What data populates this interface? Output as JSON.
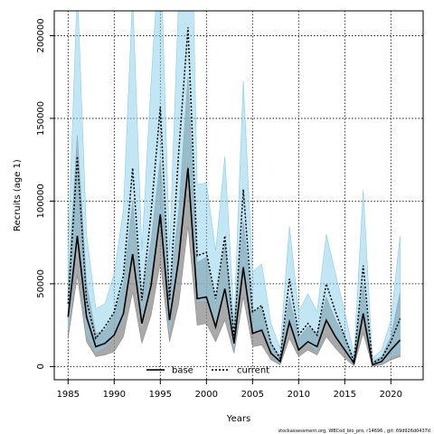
{
  "chart_data": {
    "type": "line",
    "title": "",
    "xlabel": "Years",
    "ylabel": "Recruits (age 1)",
    "xlim": [
      1983.5,
      2023.5
    ],
    "ylim": [
      -8000,
      215000
    ],
    "x_ticks": [
      1985,
      1990,
      1995,
      2000,
      2005,
      2010,
      2015,
      2020
    ],
    "y_ticks": [
      0,
      50000,
      100000,
      150000,
      200000
    ],
    "grid": true,
    "legend_position": "bottom-center",
    "x": [
      1985,
      1986,
      1987,
      1988,
      1989,
      1990,
      1991,
      1992,
      1993,
      1994,
      1995,
      1996,
      1997,
      1998,
      1999,
      2000,
      2001,
      2002,
      2003,
      2004,
      2005,
      2006,
      2007,
      2008,
      2009,
      2010,
      2011,
      2012,
      2013,
      2014,
      2015,
      2016,
      2017,
      2018,
      2019,
      2020,
      2021
    ],
    "series": [
      {
        "name": "base",
        "color": "#000000",
        "band_color": "#8c8c8c",
        "line_style": "solid",
        "values": [
          30000,
          79000,
          30000,
          12000,
          14000,
          19000,
          32000,
          68000,
          26000,
          49000,
          92000,
          28000,
          65000,
          120000,
          41000,
          42000,
          24000,
          47000,
          14000,
          60000,
          20000,
          22000,
          8000,
          3000,
          27000,
          10000,
          15000,
          12000,
          28000,
          18000,
          10000,
          2000,
          32000,
          1000,
          3000,
          10000,
          16000
        ],
        "lower": [
          17000,
          55000,
          15000,
          6000,
          7000,
          9000,
          18000,
          45000,
          14000,
          31000,
          63000,
          15000,
          38000,
          85000,
          25000,
          26000,
          15000,
          28000,
          8000,
          42000,
          12000,
          13000,
          4000,
          1000,
          17000,
          6000,
          10000,
          7000,
          18000,
          11000,
          5000,
          500,
          20000,
          200,
          1000,
          4000,
          6000
        ],
        "upper": [
          48000,
          140000,
          50000,
          20000,
          22000,
          32000,
          50000,
          100000,
          42000,
          76000,
          125000,
          45000,
          94000,
          175000,
          63000,
          66000,
          38000,
          74000,
          23000,
          88000,
          33000,
          36000,
          14000,
          6000,
          42000,
          17000,
          24000,
          20000,
          42000,
          28000,
          18000,
          5000,
          50000,
          3000,
          6000,
          18000,
          45000
        ]
      },
      {
        "name": "current",
        "color": "#000000",
        "band_color": "#87ceeb",
        "line_style": "dotted",
        "values": [
          38000,
          127000,
          40000,
          17000,
          24000,
          33000,
          55000,
          120000,
          40000,
          93000,
          157000,
          40000,
          130000,
          205000,
          67000,
          69000,
          41000,
          79000,
          17000,
          107000,
          33000,
          37000,
          14000,
          5000,
          53000,
          19000,
          26000,
          19000,
          50000,
          33000,
          18000,
          3000,
          61000,
          2000,
          5000,
          15000,
          29000
        ],
        "lower": [
          22000,
          80000,
          20000,
          9000,
          12000,
          18000,
          30000,
          70000,
          24000,
          58000,
          95000,
          20000,
          80000,
          130000,
          40000,
          40000,
          24000,
          45000,
          10000,
          65000,
          20000,
          22000,
          7000,
          2000,
          30000,
          10000,
          14000,
          10000,
          28000,
          19000,
          9000,
          1000,
          35000,
          800,
          2000,
          6000,
          8000
        ],
        "upper": [
          70000,
          230000,
          80000,
          35000,
          38000,
          56000,
          95000,
          225000,
          70000,
          172000,
          260000,
          70000,
          225000,
          380000,
          110000,
          111000,
          70000,
          127000,
          29000,
          173000,
          57000,
          62000,
          26000,
          11000,
          85000,
          33000,
          44000,
          33000,
          80000,
          56000,
          33000,
          7000,
          107000,
          5000,
          10000,
          28000,
          79000
        ]
      }
    ],
    "footer": "stockassessment.org, WBCod_bio_pro, r14696 , git: 69d926d0437d"
  }
}
